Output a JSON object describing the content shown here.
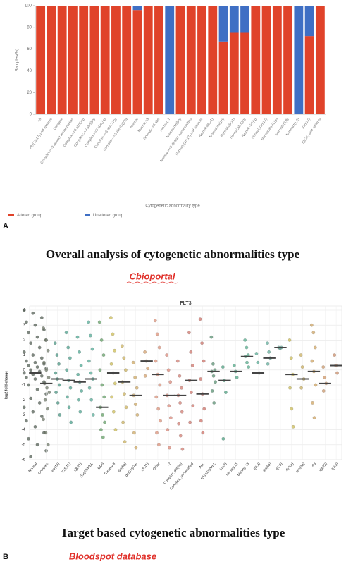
{
  "chart_data": [
    {
      "type": "stacked-bar",
      "categories": [
        "+8",
        "+8,t(15;17) and variants",
        "Complex",
        "Complex->=3 distinct abnormalities",
        "Complex->=3 abn(3q)",
        "Complex->=3 abn(5q)",
        "Complex->=3 abn(7q)",
        "Complex->=3 abn(17p)",
        "Complex->=3 abn(5q)/7q",
        "Normal",
        "Normal,+8",
        "Normal->=3 abn",
        "Normal,-7",
        "Normal,del(5q)",
        "Normal->=3 distinct abnormalities",
        "Normal,t(15;17) and variants",
        "Normal,t(8;21)",
        "Normal,inv(16)",
        "Normal,t(9;11)",
        "Normal,abn(3q)",
        "Normal,-5/7(q)",
        "Normal,t(15;17)",
        "Normal,abn(17p)",
        "Normal,t(6;9)",
        "Normal,t(1;3)",
        "t(15;17)",
        "t(8;21) and variants"
      ],
      "series": [
        {
          "name": "Altered group",
          "color": "#e0432a",
          "values": [
            100,
            100,
            100,
            100,
            100,
            100,
            100,
            100,
            100,
            96,
            100,
            100,
            0,
            100,
            100,
            100,
            100,
            67,
            75,
            75,
            100,
            100,
            100,
            100,
            0,
            72,
            100
          ]
        },
        {
          "name": "Unaltered group",
          "color": "#3f6fc4",
          "values": [
            0,
            0,
            0,
            0,
            0,
            0,
            0,
            0,
            0,
            4,
            0,
            0,
            100,
            0,
            0,
            0,
            0,
            33,
            25,
            25,
            0,
            0,
            0,
            0,
            100,
            28,
            0
          ]
        }
      ],
      "ylim": [
        0,
        100
      ],
      "yticks": [
        0,
        20,
        40,
        60,
        80,
        100
      ],
      "ylabel": "Samples(%)",
      "xlabel": "Cytogenetic abnormality type",
      "legend": "bottom-left"
    },
    {
      "type": "strip",
      "title": "FLT3",
      "ylabel": "log2 fold-change",
      "categories": [
        "Normal",
        "Complex",
        "inv(16)",
        "t(15;17)",
        "t(8;21)",
        "t11q23/MLL",
        "MDS",
        "Trisomy 8",
        "del(5q)",
        "del(7q)/7q-",
        "t(9;11)",
        "Other",
        "-7",
        "Complex_del(5q)",
        "Complex_unclassified",
        "ALL",
        "t(11q23)/MLL",
        "inv(3)",
        "trisomy 11",
        "trisomy 13",
        "t(6;9)",
        "del(9q)",
        "t(1;3)",
        "-5/7(q)",
        "abn(3q)",
        "-9q",
        "t(9;22)",
        "t(3;3)"
      ],
      "colors": [
        "#48564a",
        "#66705f",
        "#3d8f7a",
        "#3f9a84",
        "#42a08a",
        "#4aa590",
        "#5a9a5c",
        "#c9b84a",
        "#c8ad52",
        "#cba35a",
        "#d19a62",
        "#d98a70",
        "#d98070",
        "#cf7468",
        "#cc6c62",
        "#c9675c",
        "#4f8a6a",
        "#3e9a78",
        "#44a07e",
        "#4aa886",
        "#4da58e",
        "#56a895",
        "#5ba092",
        "#c8b64c",
        "#c8aa52",
        "#cc9e58",
        "#c99060",
        "#c7845e"
      ],
      "points": [
        [
          4,
          3.8,
          3.5,
          3.2,
          3,
          2.7,
          2.5,
          2.2,
          2,
          1.8,
          1.5,
          1.2,
          1,
          0.8,
          0.6,
          0.5,
          0.4,
          0.3,
          0.2,
          0.1,
          0,
          -0.1,
          -0.2,
          -0.3,
          -0.4,
          -0.5,
          -0.6,
          -0.8,
          -1,
          -1.3,
          -1.6,
          -1.9,
          -2.2,
          -2.5,
          -2.8,
          -3.1,
          -3.4,
          -3.8,
          -4.2,
          -4.6,
          -5,
          -5.4,
          -5.8
        ],
        [
          2.8,
          2,
          1.3,
          0.5,
          0,
          -0.5,
          -0.9,
          -1.2,
          -1.5,
          -2,
          -2.6,
          -3.3,
          -4.2,
          -5
        ],
        [
          1.8,
          1,
          0.4,
          -0.2,
          -0.6,
          -1,
          -1.5,
          -2.2,
          -3
        ],
        [
          2.5,
          1.5,
          0.8,
          0,
          -0.7,
          -1.2,
          -1.8,
          -2.5,
          -3.5
        ],
        [
          2.2,
          1.2,
          0.3,
          -0.3,
          -0.8,
          -1.4,
          -2,
          -2.8
        ],
        [
          3.2,
          2.3,
          1.4,
          0.6,
          -0.2,
          -0.6,
          -1.2,
          -2,
          -3
        ],
        [
          3.2,
          2,
          1,
          0,
          -1,
          -1.8,
          -2.5,
          -3,
          -3.5,
          -4,
          -4.5
        ],
        [
          3.5,
          2.4,
          1.3,
          0.4,
          -0.2,
          -0.9,
          -1.8,
          -2.8,
          -4
        ],
        [
          1.6,
          0.8,
          0,
          -0.8,
          -1.6,
          -2.5,
          -3.5,
          -4.8
        ],
        [
          0.5,
          -0.5,
          -1.2,
          -1.7,
          -2.3,
          -3,
          -4.2,
          -5.2
        ],
        [
          1.2,
          0.6,
          0.1,
          -0.4
        ],
        [
          3.3,
          2.4,
          1.5,
          0.6,
          -0.3,
          -1,
          -1.8,
          -2.6,
          -3.4,
          -4.2,
          -5
        ],
        [
          1,
          0,
          -0.8,
          -1.7,
          -2.4,
          -3.2,
          -4,
          -5.2
        ],
        [
          0.6,
          -0.4,
          -1.2,
          -1.7,
          -2.2,
          -2.8,
          -3.6,
          -4.4,
          -5.3
        ],
        [
          2.5,
          1.2,
          0.3,
          -0.7,
          -1.5,
          -2.4,
          -3.5
        ],
        [
          3.4,
          1.8,
          0.6,
          -0.6,
          -1.6,
          -2.6,
          -3.4,
          -4.2
        ],
        [
          2.2,
          0.4,
          0,
          -0.1,
          -0.4,
          -0.8,
          -1.4,
          -2.2
        ],
        [
          0.2,
          -0.7,
          -1.5,
          -4.6
        ],
        [
          0.3,
          -0.1,
          -0.5
        ],
        [
          2,
          1.5,
          1,
          0.9,
          0.5,
          0.2
        ],
        [
          1.1,
          0.5,
          -0.2
        ],
        [
          1.8,
          1.2,
          0.8,
          0.4
        ],
        [
          1.5,
          1.45,
          1.5
        ],
        [
          2,
          0.8,
          -0.3,
          -1.2,
          -2.6,
          -3.8
        ],
        [
          1,
          0.2,
          -0.6,
          -1.2
        ],
        [
          3,
          2.5,
          1.5,
          0.6,
          -0.1,
          -1,
          -2.2,
          -3.2
        ],
        [
          0.2,
          -0.5,
          -0.9,
          -1.4
        ],
        [
          1,
          0.3,
          -0.2
        ]
      ],
      "medians": [
        -0.2,
        -0.9,
        -0.6,
        -0.7,
        -0.8,
        -0.6,
        -2.5,
        -0.2,
        -0.8,
        -1.7,
        0.6,
        -0.3,
        -1.7,
        -1.7,
        -0.7,
        -1.6,
        -0.1,
        -0.7,
        -0.1,
        0.9,
        -0.2,
        0.8,
        1.5,
        -0.3,
        -0.6,
        -0.1,
        -0.9,
        0.3
      ],
      "ylim": [
        -6,
        4
      ],
      "yticks": [
        -6,
        -5,
        -4,
        -3,
        -2,
        -1,
        0,
        1,
        2,
        3,
        4
      ],
      "grid": true
    }
  ],
  "captions": {
    "panel_a": "A",
    "heading_a": "Overall analysis of cytogenetic abnormalities type",
    "source_a": "Cbioportal",
    "panel_b": "B",
    "heading_b": "Target based cytogenetic abnormalities type",
    "source_b": "Bloodspot database"
  }
}
